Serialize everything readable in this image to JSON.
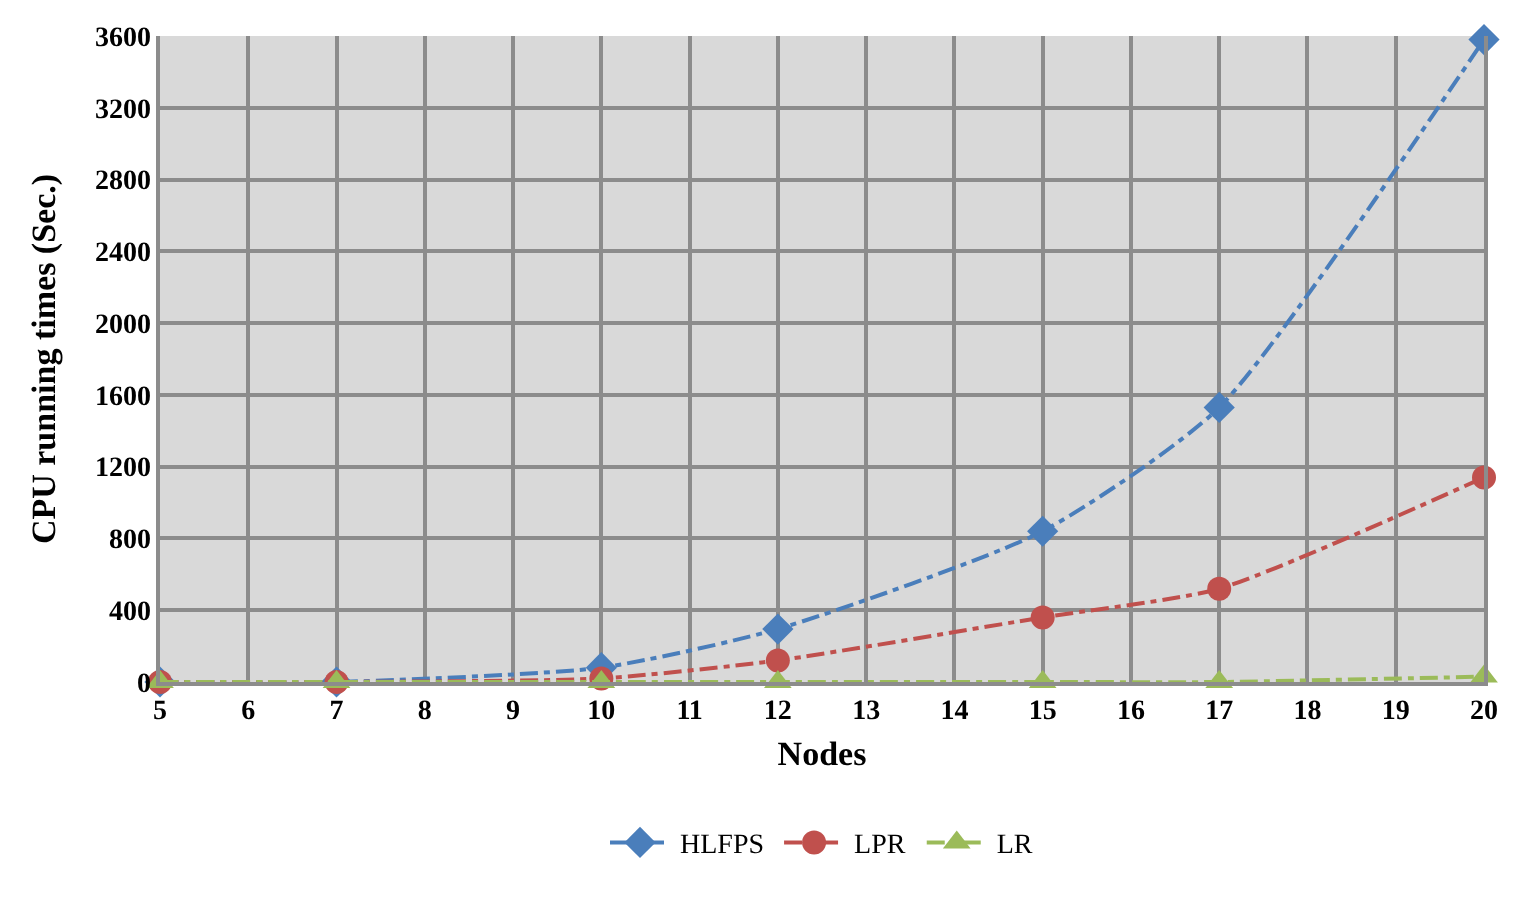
{
  "chart_data": {
    "type": "line",
    "xlabel": "Nodes",
    "ylabel": "CPU running times (Sec.)",
    "x": [
      5,
      7,
      10,
      12,
      15,
      17,
      20
    ],
    "series": [
      {
        "name": "HLFPS",
        "color": "#4a7ebb",
        "marker": "diamond",
        "values": [
          0,
          0,
          80,
          295,
          840,
          1530,
          3580
        ]
      },
      {
        "name": "LPR",
        "color": "#c0504d",
        "marker": "circle",
        "values": [
          0,
          0,
          20,
          120,
          360,
          520,
          1140
        ]
      },
      {
        "name": "LR",
        "color": "#9bbb59",
        "marker": "triangle",
        "values": [
          0,
          0,
          0,
          0,
          0,
          0,
          30
        ]
      }
    ],
    "xlim": [
      5,
      20
    ],
    "xticks": [
      5,
      6,
      7,
      8,
      9,
      10,
      11,
      12,
      13,
      14,
      15,
      16,
      17,
      18,
      19,
      20
    ],
    "ylim": [
      0,
      3600
    ],
    "yticks": [
      0,
      400,
      800,
      1200,
      1600,
      2000,
      2400,
      2800,
      3200,
      3600
    ],
    "grid": true,
    "legend": "bottom",
    "line_style": "dashdot"
  }
}
